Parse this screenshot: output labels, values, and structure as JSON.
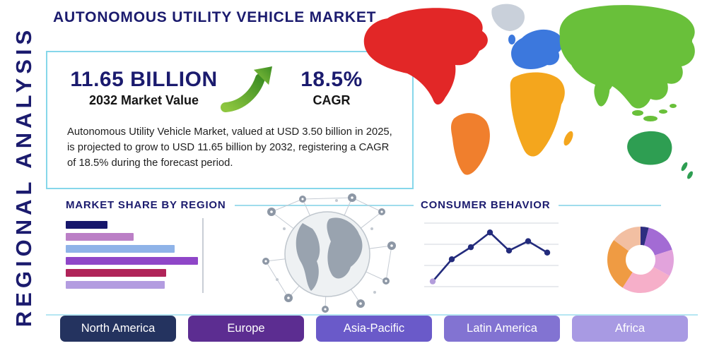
{
  "header": {
    "title": "AUTONOMOUS UTILITY VEHICLE MARKET",
    "vertical_label": "REGIONAL ANALYSIS"
  },
  "highlight": {
    "market_value": "11.65 BILLION",
    "market_value_caption": "2032 Market Value",
    "cagr_value": "18.5%",
    "cagr_caption": "CAGR",
    "description": "Autonomous Utility Vehicle Market, valued at USD 3.50 billion in 2025, is projected to grow to USD 11.65 billion by 2032, registering a CAGR of 18.5% during the forecast period."
  },
  "sections": {
    "market_share_title": "MARKET SHARE BY REGION",
    "consumer_behavior_title": "CONSUMER BEHAVIOR"
  },
  "regions": [
    {
      "label": "North America",
      "color": "#24335f"
    },
    {
      "label": "Europe",
      "color": "#5c2d91"
    },
    {
      "label": "Asia-Pacific",
      "color": "#6a5ac9"
    },
    {
      "label": "Latin America",
      "color": "#8273d2"
    },
    {
      "label": "Africa",
      "color": "#a89ae3"
    }
  ],
  "map": {
    "north_america": "#e22727",
    "greenland": "#c9d0da",
    "south_america": "#f07f2d",
    "europe": "#3c78dd",
    "africa": "#f4a61d",
    "asia": "#69c03a",
    "australia": "#2e9e52"
  },
  "theme": {
    "navy": "#1b1b6e",
    "accent_line": "#9fdcec",
    "box_border": "#86d7ea",
    "arrow_green_light": "#8dc63f",
    "arrow_green_dark": "#3e8e24",
    "text_dark": "#1e1e1e"
  },
  "chart_data": [
    {
      "type": "bar",
      "title": "MARKET SHARE BY REGION",
      "orientation": "horizontal",
      "values": [
        30,
        49,
        79,
        96,
        73,
        72
      ],
      "value_unit": "percent of chart width (estimated; no axis labels shown)",
      "colors": [
        "#16166b",
        "#bb7fc6",
        "#8fb3e8",
        "#8f46c8",
        "#b02459",
        "#b39ce0"
      ],
      "grid": "single vertical gridline at right edge"
    },
    {
      "type": "line",
      "title": "CONSUMER BEHAVIOR",
      "x": [
        1,
        2,
        3,
        4,
        5,
        6,
        7
      ],
      "values": [
        12,
        45,
        63,
        85,
        58,
        72,
        55
      ],
      "ylim": [
        0,
        100
      ],
      "grid": true,
      "line_color": "#232b7c",
      "first_point_color": "#b39ddb"
    },
    {
      "type": "pie",
      "donut": true,
      "values": [
        4,
        16,
        13,
        26,
        26,
        15
      ],
      "colors": [
        "#2e2e80",
        "#a36bd4",
        "#e2a3dc",
        "#f6afc9",
        "#ef9b43",
        "#f2bfa2"
      ]
    }
  ]
}
